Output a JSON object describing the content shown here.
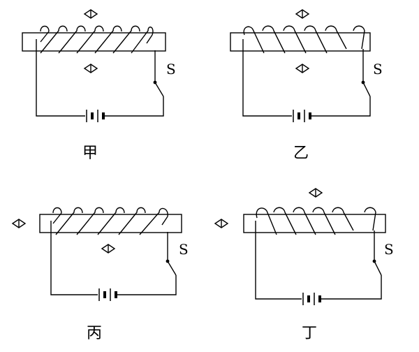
{
  "figure": {
    "panels": [
      {
        "id": "jia",
        "caption": "甲",
        "switch_label": "S",
        "winding_front": "left-up",
        "compass_count": 2
      },
      {
        "id": "yi",
        "caption": "乙",
        "switch_label": "S",
        "winding_front": "right-up",
        "compass_count": 2
      },
      {
        "id": "bing",
        "caption": "丙",
        "switch_label": "S",
        "winding_front": "left-up",
        "compass_count": 2
      },
      {
        "id": "ding",
        "caption": "丁",
        "switch_label": "S",
        "winding_front": "right-up",
        "compass_count": 2
      }
    ],
    "colors": {
      "line": "#000000",
      "background": "#ffffff"
    }
  }
}
